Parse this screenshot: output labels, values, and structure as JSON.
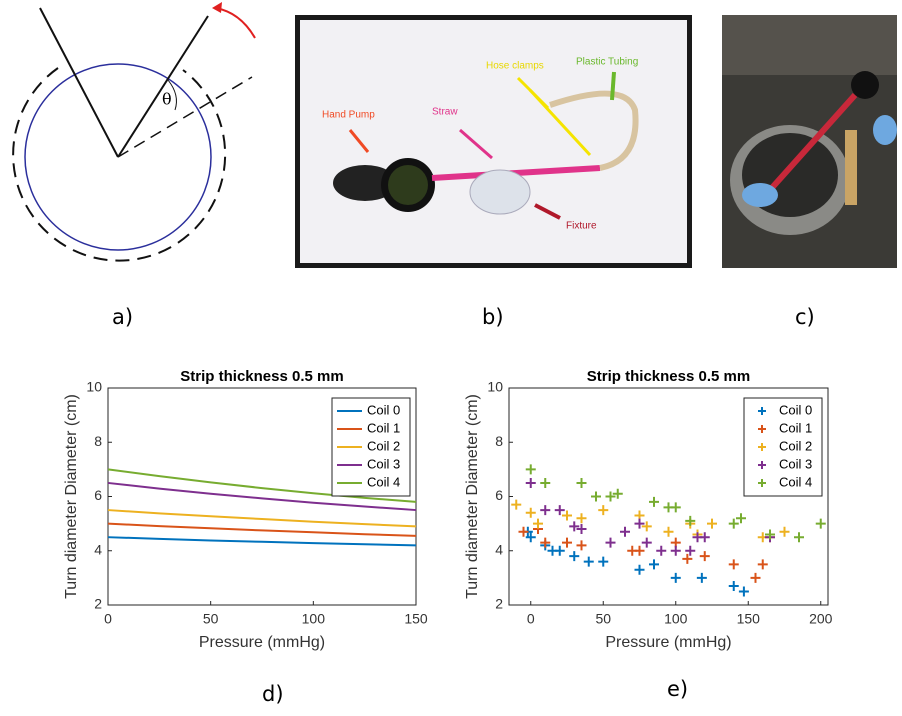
{
  "panels": {
    "a": {
      "label": "a)",
      "theta": "θ"
    },
    "b": {
      "label": "b)",
      "annotations": [
        "Hand Pump",
        "Straw",
        "Hose clamps",
        "Plastic Tubing",
        "Fixture"
      ]
    },
    "c": {
      "label": "c)"
    },
    "d": {
      "label": "d)"
    },
    "e": {
      "label": "e)"
    }
  },
  "chart_data": [
    {
      "type": "line",
      "title": "Strip thickness 0.5 mm",
      "xlabel": "Pressure (mmHg)",
      "ylabel": "Turn diameter Diameter (cm)",
      "x": [
        0,
        25,
        50,
        75,
        100,
        125,
        150
      ],
      "series": [
        {
          "name": "Coil 0",
          "color": "#0072bd",
          "values": [
            4.5,
            4.44,
            4.38,
            4.33,
            4.28,
            4.24,
            4.2
          ]
        },
        {
          "name": "Coil 1",
          "color": "#d95319",
          "values": [
            5.0,
            4.91,
            4.83,
            4.75,
            4.68,
            4.61,
            4.55
          ]
        },
        {
          "name": "Coil 2",
          "color": "#edb120",
          "values": [
            5.5,
            5.38,
            5.27,
            5.17,
            5.07,
            4.98,
            4.9
          ]
        },
        {
          "name": "Coil 3",
          "color": "#7e2f8e",
          "values": [
            6.5,
            6.29,
            6.1,
            5.93,
            5.77,
            5.63,
            5.5
          ]
        },
        {
          "name": "Coil 4",
          "color": "#77ac30",
          "values": [
            7.0,
            6.75,
            6.52,
            6.31,
            6.12,
            5.95,
            5.8
          ]
        }
      ],
      "xlim": [
        0,
        150
      ],
      "ylim": [
        2,
        10
      ],
      "xticks": [
        0,
        50,
        100,
        150
      ],
      "yticks": [
        2,
        4,
        6,
        8,
        10
      ],
      "legend": "upper right"
    },
    {
      "type": "scatter",
      "title": "Strip thickness 0.5 mm",
      "xlabel": "Pressure (mmHg)",
      "ylabel": "Turn diameter Diameter (cm)",
      "series": [
        {
          "name": "Coil 0",
          "color": "#0072bd",
          "x": [
            -2,
            0,
            10,
            15,
            20,
            30,
            40,
            50,
            75,
            85,
            100,
            118,
            140,
            147
          ],
          "values": [
            4.7,
            4.5,
            4.2,
            4.0,
            4.0,
            3.8,
            3.6,
            3.6,
            3.3,
            3.5,
            3.0,
            3.0,
            2.7,
            2.5
          ]
        },
        {
          "name": "Coil 1",
          "color": "#d95319",
          "x": [
            -5,
            5,
            10,
            25,
            35,
            70,
            75,
            100,
            108,
            120,
            140,
            155,
            160
          ],
          "values": [
            4.7,
            4.8,
            4.3,
            4.3,
            4.2,
            4.0,
            4.0,
            4.3,
            3.7,
            3.8,
            3.5,
            3.0,
            3.5
          ]
        },
        {
          "name": "Coil 2",
          "color": "#edb120",
          "x": [
            -10,
            0,
            5,
            25,
            35,
            50,
            75,
            80,
            95,
            110,
            115,
            125,
            160,
            165,
            175
          ],
          "values": [
            5.7,
            5.4,
            5.0,
            5.3,
            5.2,
            5.5,
            5.3,
            4.9,
            4.7,
            5.0,
            4.6,
            5.0,
            4.5,
            4.5,
            4.7
          ]
        },
        {
          "name": "Coil 3",
          "color": "#7e2f8e",
          "x": [
            0,
            10,
            20,
            30,
            35,
            55,
            65,
            75,
            80,
            90,
            100,
            110,
            115,
            120,
            165
          ],
          "values": [
            6.5,
            5.5,
            5.5,
            4.9,
            4.8,
            4.3,
            4.7,
            5.0,
            4.3,
            4.0,
            4.0,
            4.0,
            4.5,
            4.5,
            4.5
          ]
        },
        {
          "name": "Coil 4",
          "color": "#77ac30",
          "x": [
            0,
            10,
            35,
            45,
            55,
            60,
            85,
            95,
            100,
            110,
            140,
            145,
            165,
            185,
            200
          ],
          "values": [
            7.0,
            6.5,
            6.5,
            6.0,
            6.0,
            6.1,
            5.8,
            5.6,
            5.6,
            5.1,
            5.0,
            5.2,
            4.6,
            4.5,
            5.0
          ]
        }
      ],
      "xlim": [
        -15,
        205
      ],
      "ylim": [
        2,
        10
      ],
      "xticks": [
        0,
        50,
        100,
        150,
        200
      ],
      "yticks": [
        2,
        4,
        6,
        8,
        10
      ],
      "legend": "upper right"
    }
  ]
}
